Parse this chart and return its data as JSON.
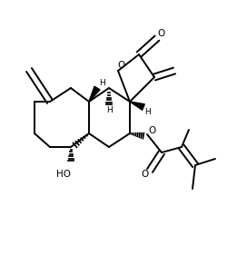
{
  "figsize": [
    2.5,
    2.92
  ],
  "dpi": 100,
  "xlim": [
    0,
    250
  ],
  "ylim": [
    0,
    292
  ],
  "lw": 1.4,
  "bg": "#ffffff"
}
